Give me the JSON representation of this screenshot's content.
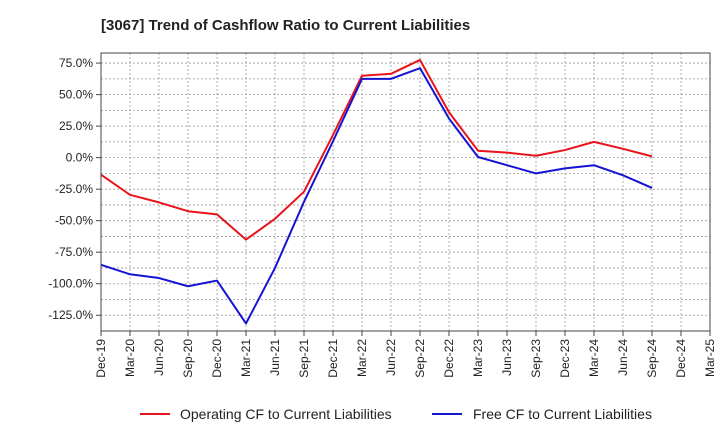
{
  "chart_data": {
    "type": "line",
    "title": "[3067]  Trend of Cashflow Ratio to Current Liabilities",
    "xlabel": "",
    "ylabel": "",
    "categories": [
      "Dec-19",
      "Mar-20",
      "Jun-20",
      "Sep-20",
      "Dec-20",
      "Mar-21",
      "Jun-21",
      "Sep-21",
      "Dec-21",
      "Mar-22",
      "Jun-22",
      "Sep-22",
      "Dec-22",
      "Mar-23",
      "Jun-23",
      "Sep-23",
      "Dec-23",
      "Mar-24",
      "Jun-24",
      "Sep-24",
      "Dec-24",
      "Mar-25"
    ],
    "ylim": [
      -137.5,
      83.0
    ],
    "yticks": [
      75,
      50,
      25,
      0,
      -25,
      -50,
      -75,
      -100,
      -125
    ],
    "ytick_labels": [
      "75.0%",
      "50.0%",
      "25.0%",
      "0.0%",
      "-25.0%",
      "-50.0%",
      "-75.0%",
      "-100.0%",
      "-125.0%"
    ],
    "grid": true,
    "legend_position": "bottom",
    "series": [
      {
        "name": "Operating CF to Current Liabilities",
        "color": "#e8141c",
        "values": [
          -13.5,
          -29.5,
          -35.5,
          -42.5,
          -45.0,
          -65.0,
          -48.5,
          -27.0,
          18.0,
          65.0,
          66.5,
          77.5,
          36.0,
          5.5,
          4.0,
          1.5,
          6.0,
          12.5,
          7.0,
          1.0,
          null,
          null
        ]
      },
      {
        "name": "Free CF to Current Liabilities",
        "color": "#1414d2",
        "values": [
          -85.0,
          -92.5,
          -95.5,
          -102.0,
          -97.5,
          -131.5,
          -87.5,
          -35.0,
          13.0,
          62.5,
          62.5,
          71.0,
          31.0,
          0.5,
          -6.0,
          -12.5,
          -8.5,
          -6.0,
          -14.0,
          -24.0,
          null,
          null
        ]
      }
    ]
  }
}
